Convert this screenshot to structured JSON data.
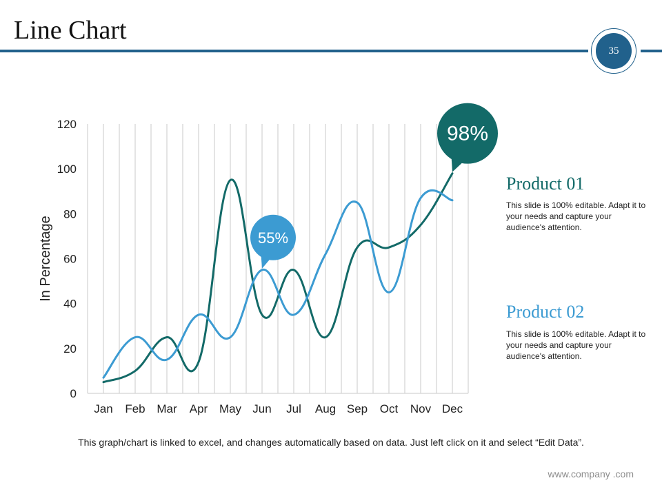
{
  "slide": {
    "title": "Line Chart",
    "page_number": "35",
    "footnote": "This graph/chart is linked to excel, and changes automatically based on data. Just left click on it and select “Edit Data”.",
    "website": "www.company .com"
  },
  "legend": [
    {
      "title": "Product 01",
      "description": "This slide is 100% editable. Adapt it to your needs and capture your audience's attention.",
      "color": "#136a68"
    },
    {
      "title": "Product 02",
      "description": "This slide is 100% editable. Adapt it to your needs and capture your audience's attention.",
      "color": "#3c9bd2"
    }
  ],
  "chart_data": {
    "type": "line",
    "title": "Line Chart",
    "ylabel": "In Percentage",
    "xlabel": "",
    "ylim": [
      0,
      120
    ],
    "yticks": [
      0,
      20,
      40,
      60,
      80,
      100,
      120
    ],
    "categories": [
      "Jan",
      "Feb",
      "Mar",
      "Apr",
      "May",
      "Jun",
      "Jul",
      "Aug",
      "Sep",
      "Oct",
      "Nov",
      "Dec"
    ],
    "series": [
      {
        "name": "Product 01",
        "color": "#136a68",
        "values": [
          5,
          10,
          25,
          14,
          95,
          35,
          55,
          25,
          65,
          65,
          75,
          98
        ]
      },
      {
        "name": "Product 02",
        "color": "#3c9bd2",
        "values": [
          7,
          25,
          15,
          35,
          25,
          55,
          35,
          62,
          85,
          45,
          87,
          86
        ]
      }
    ],
    "callouts": [
      {
        "series": "Product 01",
        "category": "Dec",
        "label": "98%",
        "color": "#136a68"
      },
      {
        "series": "Product 02",
        "category": "Jun",
        "label": "55%",
        "color": "#3c9bd2"
      }
    ],
    "grid": "vertical"
  }
}
